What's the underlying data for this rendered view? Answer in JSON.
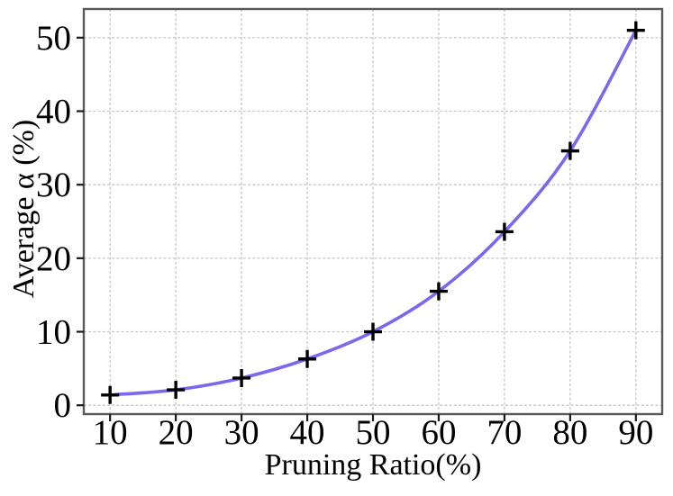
{
  "figure": {
    "background": "#ffffff",
    "text_color": "#000000"
  },
  "chart_data": {
    "type": "line",
    "title": "",
    "xlabel": "Pruning Ratio(%)",
    "ylabel": "Average α (%)",
    "x": [
      10,
      20,
      30,
      40,
      50,
      60,
      70,
      80,
      90
    ],
    "series": [
      {
        "name": "Average α",
        "color": "#7B68EE",
        "marker": "plus",
        "marker_color": "#000000",
        "values": [
          1.4,
          2.1,
          3.7,
          6.3,
          10.0,
          15.5,
          23.6,
          34.6,
          51.0
        ]
      }
    ],
    "xticks": [
      10,
      20,
      30,
      40,
      50,
      60,
      70,
      80,
      90
    ],
    "yticks": [
      0,
      10,
      20,
      30,
      40,
      50
    ],
    "xlim": [
      6,
      94
    ],
    "ylim": [
      -1.2,
      53.9
    ],
    "grid": true,
    "grid_style": "dashed",
    "grid_color": "#c6c6c6",
    "spine_color": "#595959",
    "tick_color": "#1a1a1a",
    "legend_position": "none"
  }
}
